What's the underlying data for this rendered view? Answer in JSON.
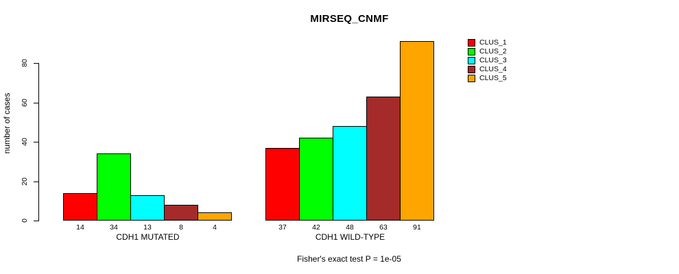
{
  "chart_data": {
    "type": "bar",
    "title": "MIRSEQ_CNMF",
    "ylabel": "number of cases",
    "xlabel": "",
    "footer": "Fisher's exact test P = 1e-05",
    "categories": [
      "CDH1 MUTATED",
      "CDH1 WILD-TYPE"
    ],
    "series": [
      {
        "name": "CLUS_1",
        "color": "#FF0000",
        "values": [
          14,
          37
        ]
      },
      {
        "name": "CLUS_2",
        "color": "#00FF00",
        "values": [
          34,
          42
        ]
      },
      {
        "name": "CLUS_3",
        "color": "#00FFFF",
        "values": [
          13,
          48
        ]
      },
      {
        "name": "CLUS_4",
        "color": "#A52A2A",
        "values": [
          8,
          63
        ]
      },
      {
        "name": "CLUS_5",
        "color": "#FFA500",
        "values": [
          4,
          91
        ]
      }
    ],
    "show_bar_values": true,
    "y_ticks": [
      0,
      20,
      40,
      60,
      80
    ],
    "ylim": [
      0,
      93
    ],
    "grid": false,
    "legend_position": "right-top"
  }
}
